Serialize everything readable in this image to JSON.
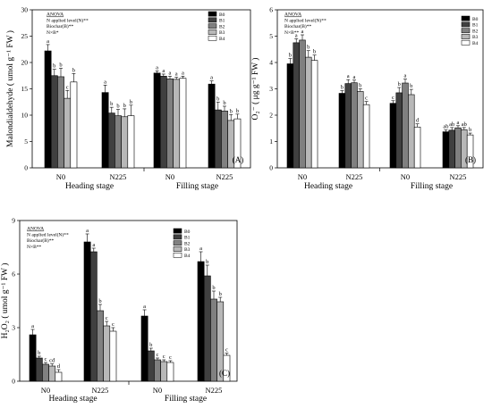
{
  "colors": {
    "B0": "#000000",
    "B1": "#404040",
    "B2": "#808080",
    "B3": "#b8b8b8",
    "B4": "#ffffff"
  },
  "chart_data": [
    {
      "type": "bar",
      "panel_label": "(A)",
      "ylabel": "Malondialdehyde ( umol g⁻¹ FW )",
      "ylim": [
        0,
        30
      ],
      "yticks": [
        0,
        5,
        10,
        15,
        20,
        25,
        30
      ],
      "categories": [
        "N0",
        "N225",
        "N0",
        "N225"
      ],
      "stages": [
        "Heading stage",
        "Filling stage"
      ],
      "series": [
        {
          "name": "B0",
          "values": [
            22.2,
            14.3,
            18.0,
            15.9
          ],
          "errors": [
            1.2,
            1.4,
            0.4,
            0.6
          ],
          "letters": [
            "a",
            "a",
            "a",
            "a"
          ]
        },
        {
          "name": "B1",
          "values": [
            17.5,
            10.4,
            17.4,
            11.0
          ],
          "errors": [
            1.2,
            1.1,
            0.4,
            1.5
          ],
          "letters": [
            "b",
            "b",
            "a",
            "b"
          ]
        },
        {
          "name": "B2",
          "values": [
            17.3,
            9.9,
            16.9,
            10.8
          ],
          "errors": [
            1.6,
            1.2,
            0.5,
            0.9
          ],
          "letters": [
            "b",
            "b",
            "a",
            "b"
          ]
        },
        {
          "name": "B3",
          "values": [
            13.2,
            9.7,
            16.8,
            9.0
          ],
          "errors": [
            1.5,
            1.5,
            0.4,
            1.1
          ],
          "letters": [
            "c",
            "b",
            "a",
            "b"
          ]
        },
        {
          "name": "B4",
          "values": [
            16.3,
            9.9,
            17.0,
            9.3
          ],
          "errors": [
            1.6,
            2.0,
            0.4,
            0.9
          ],
          "letters": [
            "b",
            "b",
            "a",
            "b"
          ]
        }
      ],
      "anova": [
        "ANOVA",
        "N applied level(N)**",
        "Biochar(B)**",
        "N×B*"
      ]
    },
    {
      "type": "bar",
      "panel_label": "(B)",
      "ylabel": "O₂⁻ ( μg g⁻¹ FW )",
      "ylim": [
        0,
        6
      ],
      "yticks": [
        0,
        1,
        2,
        3,
        4,
        5,
        6
      ],
      "categories": [
        "N0",
        "N225",
        "N0",
        "N225"
      ],
      "stages": [
        "Heading stage",
        "Filling stage"
      ],
      "series": [
        {
          "name": "B0",
          "values": [
            3.95,
            2.83,
            2.45,
            1.37
          ],
          "errors": [
            0.2,
            0.1,
            0.1,
            0.07
          ],
          "letters": [
            "b",
            "b",
            "c",
            "ab"
          ]
        },
        {
          "name": "B1",
          "values": [
            4.75,
            3.2,
            2.85,
            1.43
          ],
          "errors": [
            0.15,
            0.15,
            0.2,
            0.1
          ],
          "letters": [
            "a",
            "a",
            "b",
            "ab"
          ]
        },
        {
          "name": "B2",
          "values": [
            4.85,
            3.23,
            3.22,
            1.52
          ],
          "errors": [
            0.2,
            0.1,
            0.15,
            0.08
          ],
          "letters": [
            "a",
            "a",
            "a",
            "a"
          ]
        },
        {
          "name": "B3",
          "values": [
            4.2,
            2.9,
            2.78,
            1.45
          ],
          "errors": [
            0.25,
            0.1,
            0.2,
            0.08
          ],
          "letters": [
            "b",
            "b",
            "b",
            "ab"
          ]
        },
        {
          "name": "B4",
          "values": [
            4.08,
            2.4,
            1.55,
            1.25
          ],
          "errors": [
            0.2,
            0.12,
            0.12,
            0.07
          ],
          "letters": [
            "b",
            "c",
            "d",
            "b"
          ]
        }
      ],
      "anova": [
        "ANOVA",
        "N applied level(N)**",
        "Biochar(B)**",
        "N×B**"
      ]
    },
    {
      "type": "bar",
      "panel_label": "(C)",
      "ylabel": "H₂O₂ ( umol g⁻¹ FW )",
      "ylim": [
        0,
        9
      ],
      "yticks": [
        0,
        3,
        6,
        9
      ],
      "categories": [
        "N0",
        "N225",
        "N0",
        "N225"
      ],
      "stages": [
        "Heading stage",
        "Filling stage"
      ],
      "series": [
        {
          "name": "B0",
          "values": [
            2.6,
            7.8,
            3.65,
            6.7
          ],
          "errors": [
            0.3,
            0.45,
            0.35,
            0.55
          ],
          "letters": [
            "a",
            "a",
            "a",
            "a"
          ]
        },
        {
          "name": "B1",
          "values": [
            1.3,
            7.25,
            1.7,
            5.9
          ],
          "errors": [
            0.1,
            0.2,
            0.15,
            0.6
          ],
          "letters": [
            "b",
            "a",
            "b",
            "b"
          ]
        },
        {
          "name": "B2",
          "values": [
            0.95,
            3.95,
            1.2,
            4.6
          ],
          "errors": [
            0.1,
            0.35,
            0.1,
            0.45
          ],
          "letters": [
            "c",
            "b",
            "c",
            "b"
          ]
        },
        {
          "name": "B3",
          "values": [
            0.85,
            3.1,
            1.1,
            4.45
          ],
          "errors": [
            0.12,
            0.25,
            0.1,
            0.25
          ],
          "letters": [
            "cd",
            "c",
            "c",
            "b"
          ]
        },
        {
          "name": "B4",
          "values": [
            0.5,
            2.8,
            1.05,
            1.45
          ],
          "errors": [
            0.15,
            0.2,
            0.1,
            0.12
          ],
          "letters": [
            "d",
            "c",
            "c",
            "c"
          ]
        }
      ],
      "anova": [
        "ANOVA",
        "N applied level(N)**",
        "Biochar(B)**",
        "N×B**"
      ]
    }
  ]
}
